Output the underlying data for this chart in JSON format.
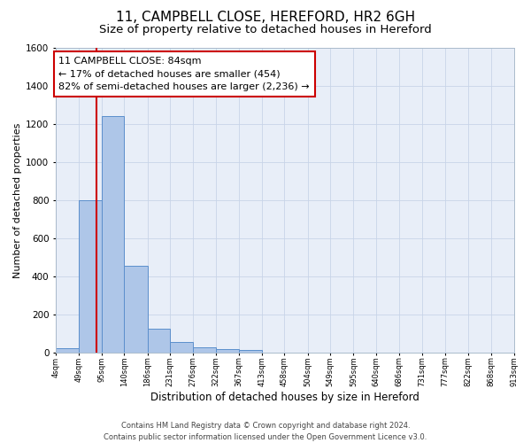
{
  "title": "11, CAMPBELL CLOSE, HEREFORD, HR2 6GH",
  "subtitle": "Size of property relative to detached houses in Hereford",
  "xlabel": "Distribution of detached houses by size in Hereford",
  "ylabel": "Number of detached properties",
  "footer_line1": "Contains HM Land Registry data © Crown copyright and database right 2024.",
  "footer_line2": "Contains public sector information licensed under the Open Government Licence v3.0.",
  "bar_edges": [
    4,
    49,
    95,
    140,
    186,
    231,
    276,
    322,
    367,
    413,
    458,
    504,
    549,
    595,
    640,
    686,
    731,
    777,
    822,
    868,
    913
  ],
  "bar_heights": [
    25,
    800,
    1240,
    455,
    125,
    58,
    27,
    18,
    14,
    0,
    0,
    0,
    0,
    0,
    0,
    0,
    0,
    0,
    0,
    0
  ],
  "bar_color": "#aec6e8",
  "bar_edgecolor": "#5b8fcc",
  "property_line_x": 84,
  "property_line_color": "#cc0000",
  "annotation_text": "11 CAMPBELL CLOSE: 84sqm\n← 17% of detached houses are smaller (454)\n82% of semi-detached houses are larger (2,236) →",
  "annotation_box_color": "#cc0000",
  "ylim": [
    0,
    1600
  ],
  "yticks": [
    0,
    200,
    400,
    600,
    800,
    1000,
    1200,
    1400,
    1600
  ],
  "tick_labels": [
    "4sqm",
    "49sqm",
    "95sqm",
    "140sqm",
    "186sqm",
    "231sqm",
    "276sqm",
    "322sqm",
    "367sqm",
    "413sqm",
    "458sqm",
    "504sqm",
    "549sqm",
    "595sqm",
    "640sqm",
    "686sqm",
    "731sqm",
    "777sqm",
    "822sqm",
    "868sqm",
    "913sqm"
  ],
  "grid_color": "#c8d4e8",
  "bg_color": "#e8eef8",
  "title_fontsize": 11,
  "subtitle_fontsize": 9.5,
  "annotation_fontsize": 8,
  "ylabel_fontsize": 8,
  "xlabel_fontsize": 8.5,
  "footer_fontsize": 6
}
